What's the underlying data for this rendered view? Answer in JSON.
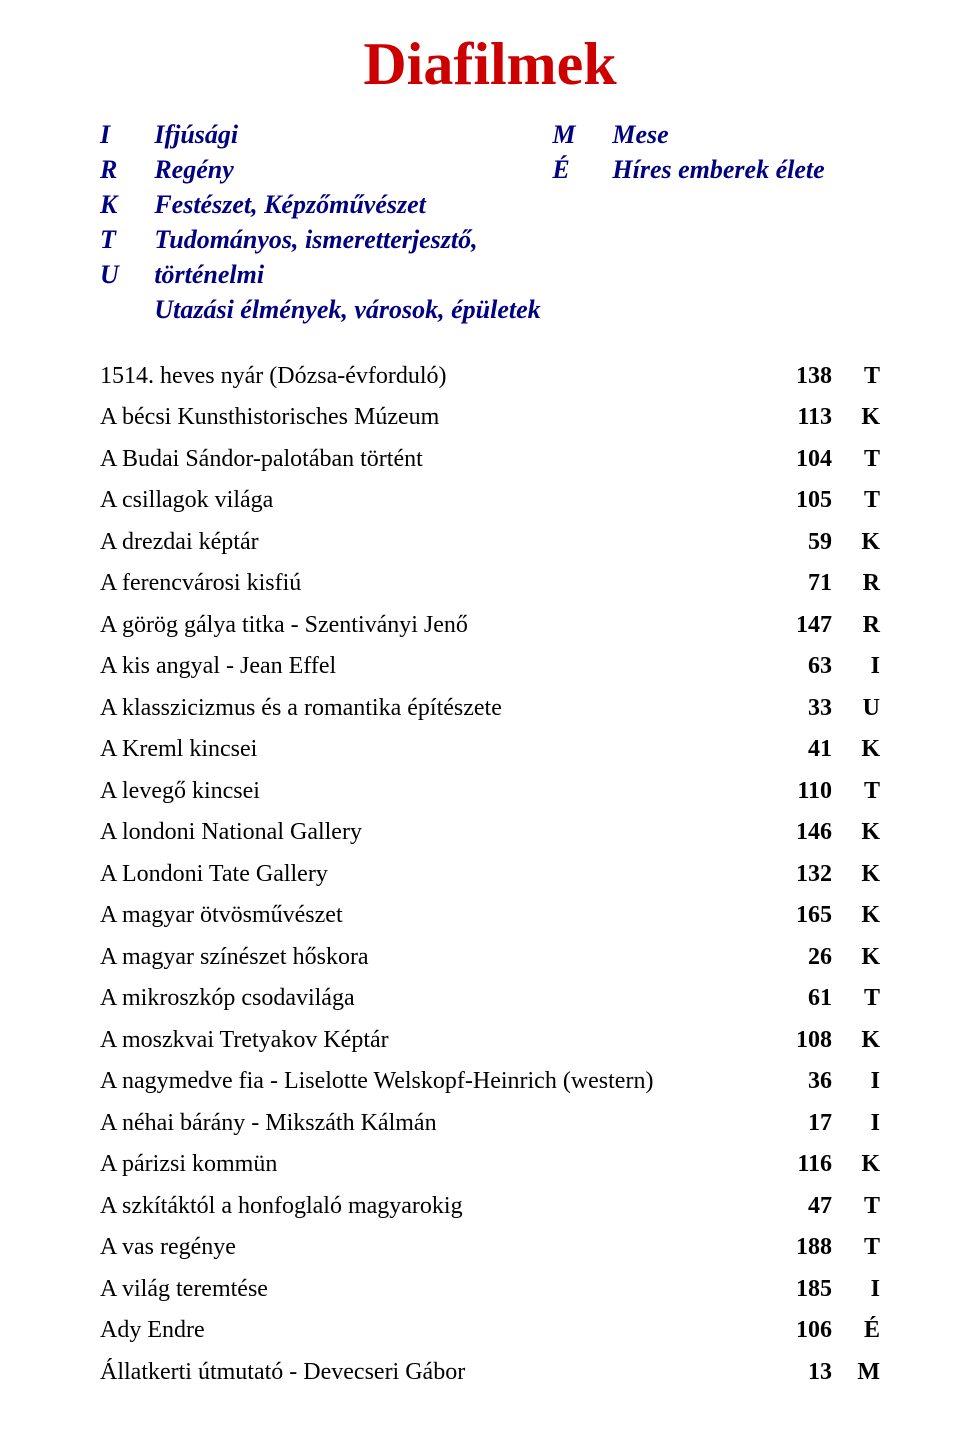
{
  "title": "Diafilmek",
  "title_color": "#cc0000",
  "legend_color": "#000080",
  "text_color": "#000000",
  "background_color": "#ffffff",
  "fonts": {
    "title_size_pt": 45,
    "legend_size_pt": 20,
    "body_size_pt": 18
  },
  "legend": {
    "left": {
      "letters": [
        "I",
        "R",
        "K",
        "T",
        "U"
      ],
      "labels": [
        "Ifjúsági",
        "Regény",
        "Festészet, Képzőművészet",
        "Tudományos, ismeretterjesztő, történelmi",
        "Utazási élmények, városok, épületek"
      ]
    },
    "right": {
      "letters": [
        "M",
        "É"
      ],
      "labels": [
        "Mese",
        "Híres emberek élete"
      ]
    }
  },
  "entries": [
    {
      "title": "1514. heves nyár (Dózsa-évforduló)",
      "num": "138",
      "code": "T"
    },
    {
      "title": "A bécsi Kunsthistorisches Múzeum",
      "num": "113",
      "code": "K"
    },
    {
      "title": "A Budai Sándor-palotában történt",
      "num": "104",
      "code": "T"
    },
    {
      "title": "A csillagok világa",
      "num": "105",
      "code": "T"
    },
    {
      "title": "A drezdai képtár",
      "num": "59",
      "code": "K"
    },
    {
      "title": "A ferencvárosi kisfiú",
      "num": "71",
      "code": "R"
    },
    {
      "title": "A görög gálya titka - Szentiványi Jenő",
      "num": "147",
      "code": "R"
    },
    {
      "title": "A kis angyal - Jean Effel",
      "num": "63",
      "code": "I"
    },
    {
      "title": "A klasszicizmus és a romantika építészete",
      "num": "33",
      "code": "U"
    },
    {
      "title": "A Kreml kincsei",
      "num": "41",
      "code": "K"
    },
    {
      "title": "A levegő kincsei",
      "num": "110",
      "code": "T"
    },
    {
      "title": "A londoni National Gallery",
      "num": "146",
      "code": "K"
    },
    {
      "title": "A Londoni Tate Gallery",
      "num": "132",
      "code": "K"
    },
    {
      "title": "A magyar ötvösművészet",
      "num": "165",
      "code": "K"
    },
    {
      "title": "A magyar színészet hőskora",
      "num": "26",
      "code": "K"
    },
    {
      "title": "A mikroszkóp csodavilága",
      "num": "61",
      "code": "T"
    },
    {
      "title": "A moszkvai Tretyakov Képtár",
      "num": "108",
      "code": "K"
    },
    {
      "title": "A nagymedve fia - Liselotte Welskopf-Heinrich (western)",
      "num": "36",
      "code": "I"
    },
    {
      "title": "A néhai bárány - Mikszáth Kálmán",
      "num": "17",
      "code": "I"
    },
    {
      "title": "A párizsi kommün",
      "num": "116",
      "code": "K"
    },
    {
      "title": "A szkítáktól a honfoglaló magyarokig",
      "num": "47",
      "code": "T"
    },
    {
      "title": "A vas regénye",
      "num": "188",
      "code": "T"
    },
    {
      "title": "A világ teremtése",
      "num": "185",
      "code": "I"
    },
    {
      "title": "Ady Endre",
      "num": "106",
      "code": "É"
    },
    {
      "title": "Állatkerti útmutató - Devecseri Gábor",
      "num": "13",
      "code": "M"
    }
  ]
}
